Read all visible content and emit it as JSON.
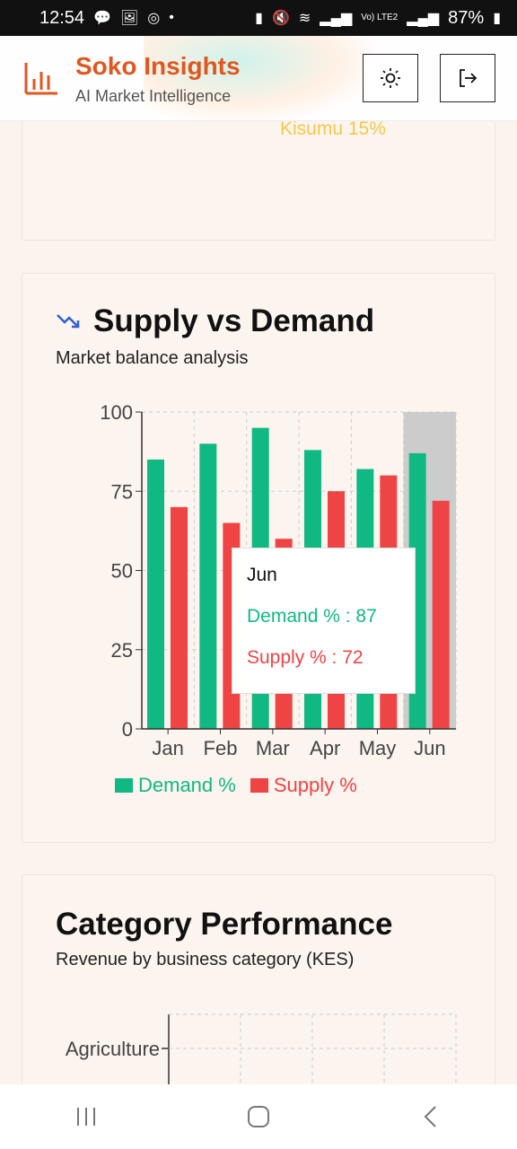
{
  "status_bar": {
    "time": "12:54",
    "battery": "87%",
    "network_label": "Vo) LTE2"
  },
  "header": {
    "title": "Soko Insights",
    "subtitle": "AI Market Intelligence",
    "theme_icon": "sun-icon",
    "logout_icon": "logout-icon"
  },
  "prev_card": {
    "label": "Kisumu 15%"
  },
  "supply_demand": {
    "title": "Supply vs Demand",
    "subtitle": "Market balance analysis",
    "icon": "trending-down-icon",
    "tooltip": {
      "label": "Jun",
      "demand": "Demand % : 87",
      "supply": "Supply % : 72"
    },
    "legend": {
      "demand": "Demand %",
      "supply": "Supply %"
    }
  },
  "category_performance": {
    "title": "Category Performance",
    "subtitle": "Revenue by business category (KES)",
    "first_category": "Agriculture"
  },
  "colors": {
    "demand": "#10b981",
    "supply": "#ef4444",
    "brand": "#e0571f",
    "highlight": "#cccccc"
  },
  "chart_data": {
    "type": "bar",
    "categories": [
      "Jan",
      "Feb",
      "Mar",
      "Apr",
      "May",
      "Jun"
    ],
    "series": [
      {
        "name": "Demand %",
        "values": [
          85,
          90,
          95,
          88,
          82,
          87
        ]
      },
      {
        "name": "Supply %",
        "values": [
          70,
          65,
          60,
          75,
          80,
          72
        ]
      }
    ],
    "yticks": [
      0,
      25,
      50,
      75,
      100
    ],
    "ylim": [
      0,
      100
    ],
    "grid": true,
    "highlight_category": "Jun",
    "legend_position": "bottom"
  }
}
